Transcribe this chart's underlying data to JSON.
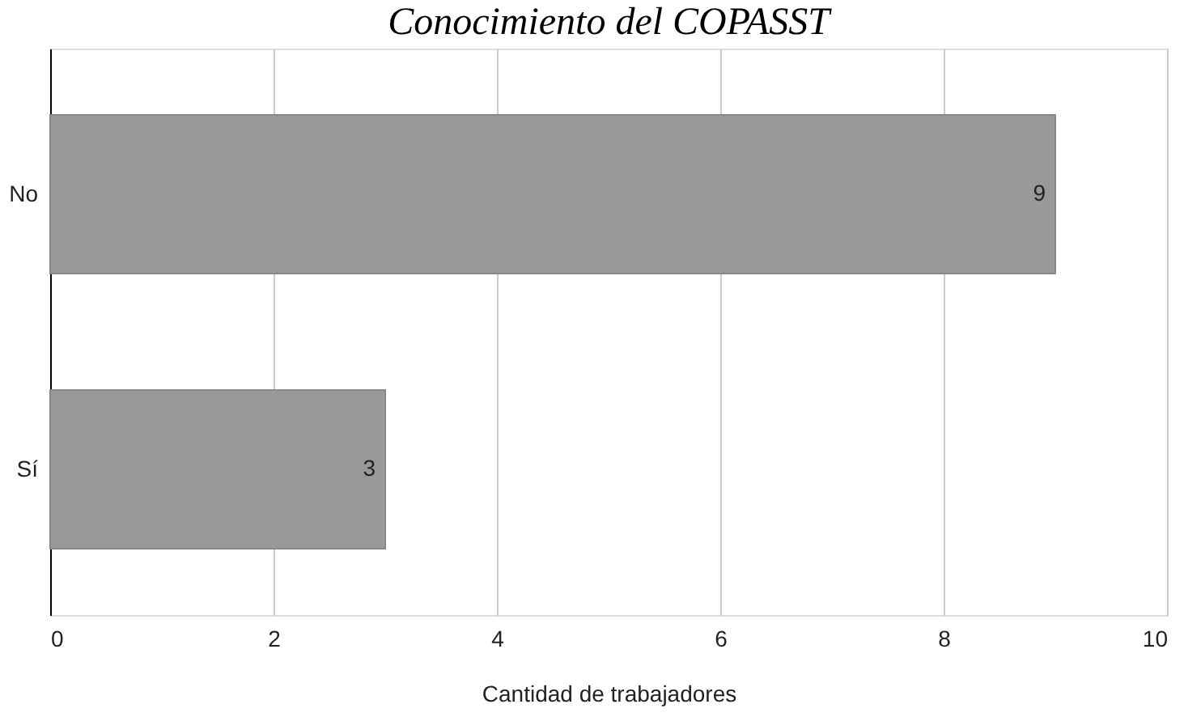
{
  "chart_data": {
    "type": "bar",
    "orientation": "horizontal",
    "title": "Conocimiento del COPASST",
    "categories": [
      "No",
      "Sí"
    ],
    "values": [
      9,
      3
    ],
    "color": "#999999",
    "xlabel": "Cantidad de trabajadores",
    "xlim": [
      0,
      10
    ],
    "xticks": [
      0,
      2,
      4,
      6,
      8,
      10
    ],
    "grid": "x",
    "data_labels": true
  }
}
